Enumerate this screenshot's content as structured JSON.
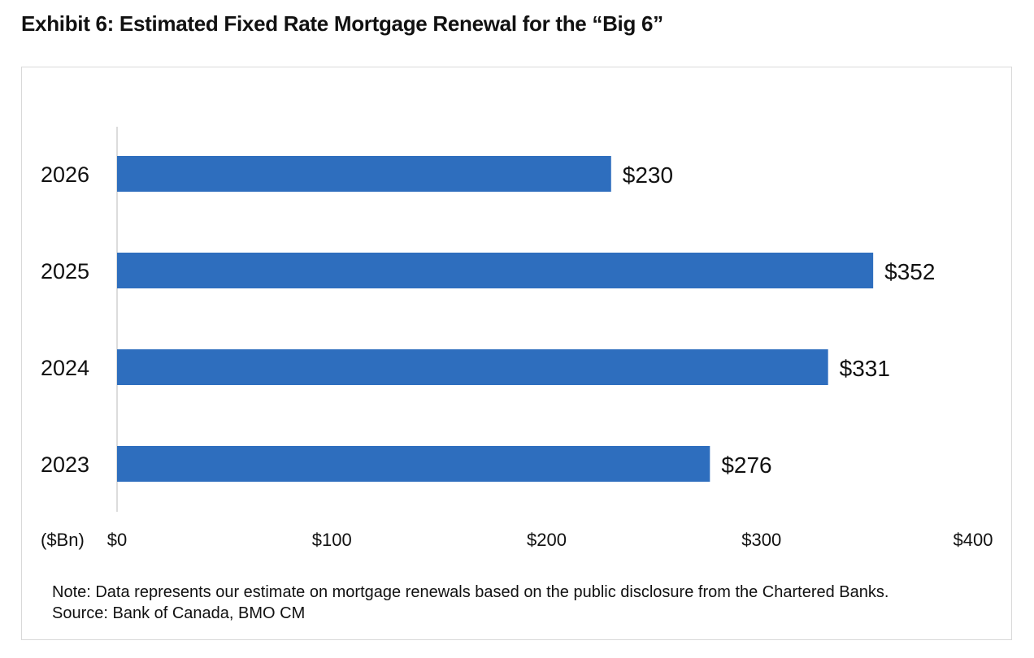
{
  "header": {
    "title": "Exhibit 6:  Estimated Fixed Rate Mortgage Renewal for the “Big 6”"
  },
  "chart_data": {
    "type": "bar",
    "orientation": "horizontal",
    "categories": [
      "2023",
      "2024",
      "2025",
      "2026"
    ],
    "values": [
      276,
      331,
      352,
      230
    ],
    "data_labels": [
      "$276",
      "$331",
      "$352",
      "$230"
    ],
    "xlim": [
      0,
      400
    ],
    "x_ticks": [
      "$0",
      "$100",
      "$200",
      "$300",
      "$400"
    ],
    "unit_label": "($Bn)",
    "bar_color": "#2E6EBE",
    "grid": false,
    "legend": "none"
  },
  "footer": {
    "note": "Note: Data represents our estimate on mortgage renewals based on the public disclosure from the Chartered Banks.",
    "source": "Source: Bank of Canada, BMO CM"
  }
}
